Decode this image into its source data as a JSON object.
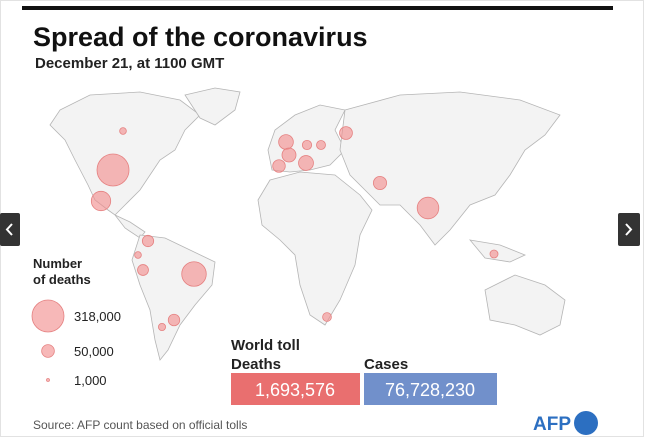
{
  "title": "Spread of the coronavirus",
  "subtitle": "December 21, at 1100 GMT",
  "legend": {
    "title_lines": [
      "Number",
      "of deaths"
    ],
    "sizes": [
      {
        "value": 318000,
        "label": "318,000"
      },
      {
        "value": 50000,
        "label": "50,000"
      },
      {
        "value": 1000,
        "label": "1,000"
      }
    ]
  },
  "deaths_by_country": [
    318000,
    187000,
    145000,
    117000,
    67000,
    69000,
    61000,
    51000,
    54000,
    49000,
    41000,
    40000,
    37000,
    27000,
    25000,
    24000,
    20000,
    16000,
    14000,
    14000
  ],
  "totals": {
    "heading": "World toll",
    "deaths_label": "Deaths",
    "deaths": "1,693,576",
    "cases_label": "Cases",
    "cases": "76,728,230"
  },
  "source": "Source: AFP count based on official tolls",
  "logo": "AFP"
}
